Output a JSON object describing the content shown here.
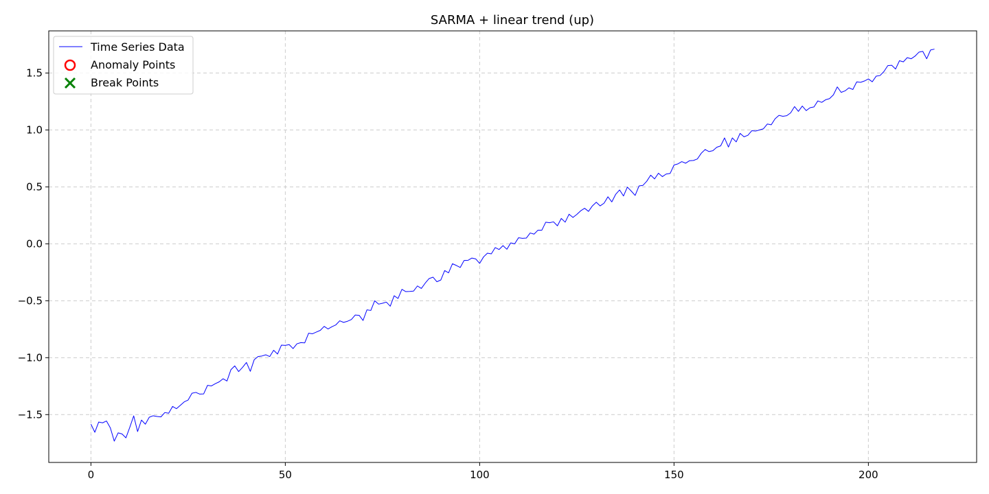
{
  "chart_data": {
    "type": "line",
    "title": "SARMA + linear trend (up)",
    "xlabel": "",
    "ylabel": "",
    "xlim": [
      -10.85,
      227.85
    ],
    "ylim": [
      -1.92,
      1.87
    ],
    "x_ticks": [
      0,
      50,
      100,
      150,
      200
    ],
    "x_tick_labels": [
      "0",
      "50",
      "100",
      "150",
      "200"
    ],
    "y_ticks": [
      -1.5,
      -1.0,
      -0.5,
      0.0,
      0.5,
      1.0,
      1.5
    ],
    "y_tick_labels": [
      "−1.5",
      "−1.0",
      "−0.5",
      "0.0",
      "0.5",
      "1.0",
      "1.5"
    ],
    "grid": true,
    "legend_position": "upper-left",
    "legend": [
      {
        "label": "Time Series Data",
        "marker": "line",
        "color": "#0000ff"
      },
      {
        "label": "Anomaly Points",
        "marker": "circle",
        "color": "#ff0000"
      },
      {
        "label": "Break Points",
        "marker": "x",
        "color": "#008000"
      }
    ],
    "series": [
      {
        "name": "Time Series Data",
        "color": "#0000ff",
        "x_start": 0,
        "x_step": 1,
        "values": [
          -1.584,
          -1.655,
          -1.565,
          -1.572,
          -1.556,
          -1.617,
          -1.733,
          -1.66,
          -1.67,
          -1.704,
          -1.611,
          -1.511,
          -1.649,
          -1.548,
          -1.584,
          -1.523,
          -1.51,
          -1.516,
          -1.52,
          -1.482,
          -1.488,
          -1.428,
          -1.448,
          -1.418,
          -1.388,
          -1.372,
          -1.312,
          -1.305,
          -1.32,
          -1.318,
          -1.243,
          -1.248,
          -1.228,
          -1.212,
          -1.185,
          -1.205,
          -1.106,
          -1.072,
          -1.122,
          -1.085,
          -1.042,
          -1.12,
          -1.018,
          -0.99,
          -0.985,
          -0.975,
          -0.99,
          -0.935,
          -0.968,
          -0.89,
          -0.892,
          -0.885,
          -0.92,
          -0.878,
          -0.868,
          -0.87,
          -0.785,
          -0.79,
          -0.775,
          -0.76,
          -0.725,
          -0.748,
          -0.728,
          -0.712,
          -0.676,
          -0.69,
          -0.68,
          -0.665,
          -0.625,
          -0.628,
          -0.673,
          -0.58,
          -0.585,
          -0.5,
          -0.53,
          -0.522,
          -0.512,
          -0.548,
          -0.456,
          -0.48,
          -0.4,
          -0.42,
          -0.418,
          -0.415,
          -0.37,
          -0.392,
          -0.345,
          -0.305,
          -0.293,
          -0.333,
          -0.318,
          -0.235,
          -0.255,
          -0.175,
          -0.19,
          -0.208,
          -0.146,
          -0.145,
          -0.125,
          -0.133,
          -0.172,
          -0.115,
          -0.082,
          -0.088,
          -0.033,
          -0.05,
          -0.016,
          -0.048,
          0.008,
          0.0,
          0.053,
          0.048,
          0.05,
          0.095,
          0.085,
          0.12,
          0.12,
          0.19,
          0.185,
          0.193,
          0.158,
          0.223,
          0.19,
          0.26,
          0.232,
          0.258,
          0.29,
          0.312,
          0.285,
          0.333,
          0.365,
          0.333,
          0.357,
          0.413,
          0.368,
          0.435,
          0.473,
          0.42,
          0.498,
          0.463,
          0.425,
          0.508,
          0.513,
          0.55,
          0.603,
          0.57,
          0.62,
          0.59,
          0.613,
          0.618,
          0.692,
          0.702,
          0.722,
          0.708,
          0.73,
          0.732,
          0.745,
          0.795,
          0.828,
          0.81,
          0.818,
          0.848,
          0.86,
          0.93,
          0.85,
          0.93,
          0.895,
          0.97,
          0.94,
          0.953,
          0.993,
          0.99,
          1.0,
          1.01,
          1.052,
          1.045,
          1.098,
          1.128,
          1.12,
          1.125,
          1.15,
          1.205,
          1.163,
          1.21,
          1.17,
          1.195,
          1.202,
          1.255,
          1.242,
          1.265,
          1.275,
          1.308,
          1.378,
          1.33,
          1.343,
          1.37,
          1.355,
          1.422,
          1.418,
          1.43,
          1.448,
          1.423,
          1.472,
          1.478,
          1.513,
          1.565,
          1.568,
          1.535,
          1.608,
          1.598,
          1.635,
          1.625,
          1.648,
          1.683,
          1.69,
          1.625,
          1.702,
          1.71
        ]
      }
    ]
  }
}
